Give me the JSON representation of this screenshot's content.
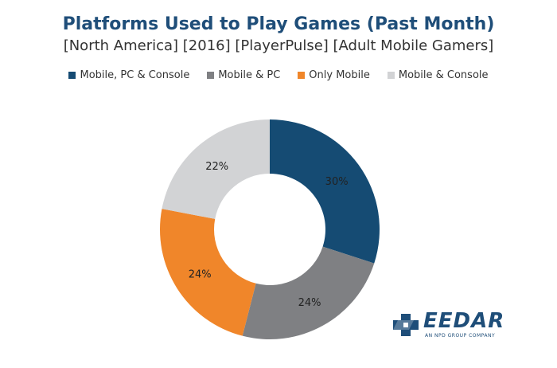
{
  "chart_data": {
    "type": "pie",
    "title": "Platforms Used to Play Games (Past Month)",
    "subtitle": "[North America] [2016] [PlayerPulse] [Adult Mobile Gamers]",
    "legend_position": "top",
    "categories": [
      "Mobile, PC & Console",
      "Mobile & PC",
      "Only Mobile",
      "Mobile & Console"
    ],
    "values": [
      30,
      24,
      24,
      22
    ],
    "labels": [
      "30%",
      "24%",
      "24%",
      "22%"
    ],
    "colors": [
      "#154b73",
      "#7f8083",
      "#f0862a",
      "#d2d3d5"
    ]
  },
  "logo": {
    "name": "EEDAR",
    "tagline": "AN NPD GROUP COMPANY",
    "icon": "eedar-cross-logo-icon"
  }
}
